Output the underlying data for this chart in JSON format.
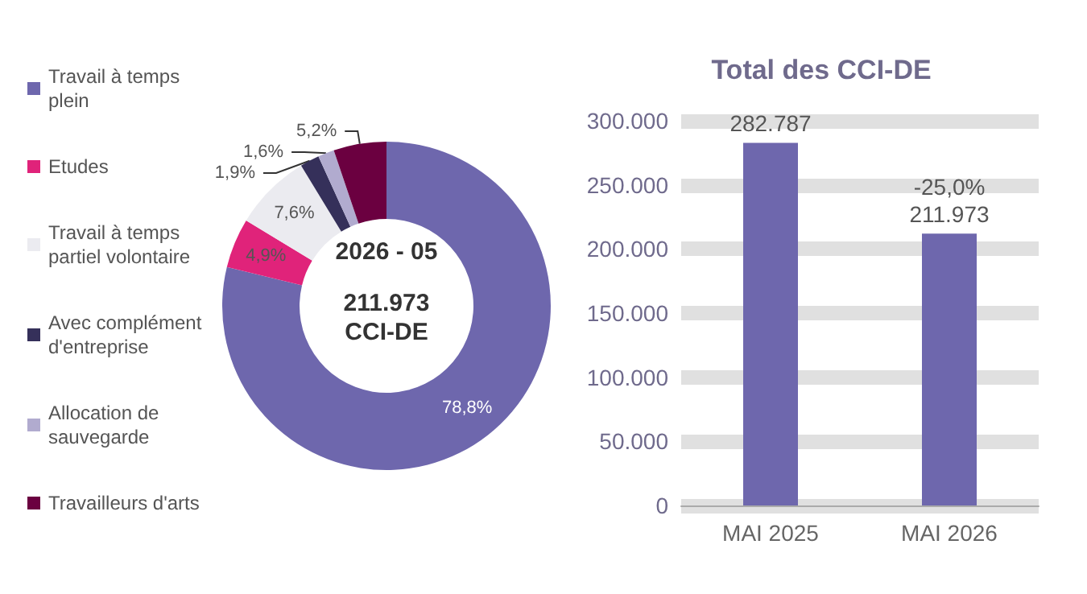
{
  "chart_data": [
    {
      "type": "donut",
      "title": "2026 - 05",
      "subtitle": "211.973 CCI-DE",
      "categories": [
        "Travail à temps plein",
        "Etudes",
        "Travail à temps partiel volontaire",
        "Avec complément d'entreprise",
        "Allocation de sauvegarde",
        "Travailleurs d'arts"
      ],
      "values": [
        78.8,
        4.9,
        7.6,
        1.9,
        1.6,
        5.2
      ],
      "value_labels": [
        "78,8%",
        "4,9%",
        "7,6%",
        "1,9%",
        "1,6%",
        "5,2%"
      ],
      "colors": [
        "#6e67ad",
        "#e0237a",
        "#ebebf0",
        "#35305a",
        "#b1abcf",
        "#6b0040"
      ],
      "legend": "left"
    },
    {
      "type": "bar",
      "title": "Total des CCI-DE",
      "categories": [
        "MAI 2025",
        "MAI 2026"
      ],
      "values": [
        282787,
        211973
      ],
      "color": "#6e67ad",
      "value_labels": [
        "282.787",
        "211.973"
      ],
      "annotations": [
        {
          "text": "-25,0%",
          "x": "MAI 2026",
          "y": 211973
        }
      ],
      "ylim": [
        0,
        300000
      ],
      "yticks": [
        {
          "value": 0,
          "label": "0"
        },
        {
          "value": 50000,
          "label": "50.000"
        },
        {
          "value": 100000,
          "label": "100.000"
        },
        {
          "value": 150000,
          "label": "150.000"
        },
        {
          "value": 200000,
          "label": "200.000"
        },
        {
          "value": 250000,
          "label": "250.000"
        },
        {
          "value": 300000,
          "label": "300.000"
        }
      ],
      "grid": "y"
    }
  ]
}
